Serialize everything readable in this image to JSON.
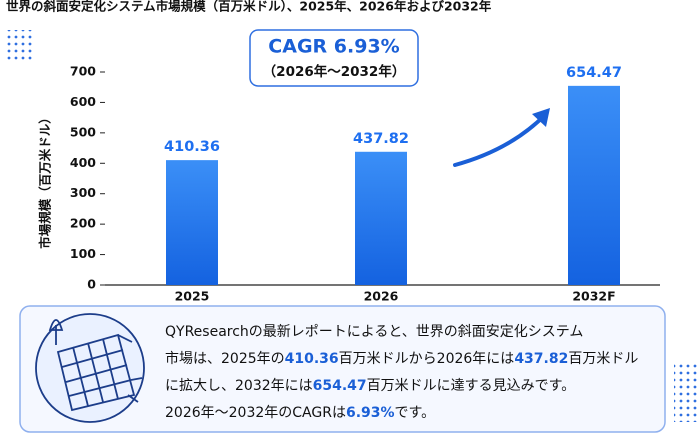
{
  "chart_data": {
    "type": "bar",
    "title": "世界の斜面安定化システム市場規模（百万米ドル）、2025年、2026年および2032年",
    "y_label": "市場規模（百万米ドル）",
    "categories": [
      "2025",
      "2026",
      "2032F"
    ],
    "values": [
      410.36,
      437.82,
      654.47
    ],
    "color": "#1e6ff0",
    "ylim": [
      0,
      700
    ],
    "yticks": [
      0,
      100,
      200,
      300,
      400,
      500,
      600,
      700
    ],
    "grid": false,
    "annotations": {
      "cagr": "CAGR 6.93%",
      "period": "（2026年～2032年）"
    }
  },
  "description": {
    "lines": [
      [
        {
          "text": "QYResearchの最新レポートによると、世界の斜面安定化システム",
          "highlight": false
        }
      ],
      [
        {
          "text": "市場は、2025年の",
          "highlight": false
        },
        {
          "text": "410.36",
          "highlight": true
        },
        {
          "text": "百万米ドルから2026年には",
          "highlight": false
        },
        {
          "text": "437.82",
          "highlight": true
        },
        {
          "text": "百万米ドル",
          "highlight": false
        }
      ],
      [
        {
          "text": "に拡大し、2032年には",
          "highlight": false
        },
        {
          "text": "654.47",
          "highlight": true
        },
        {
          "text": "百万米ドルに達する見込みです。",
          "highlight": false
        }
      ],
      [
        {
          "text": "2026年～2032年のCAGRは",
          "highlight": false
        },
        {
          "text": "6.93%",
          "highlight": true
        },
        {
          "text": "です。",
          "highlight": false
        }
      ]
    ]
  }
}
